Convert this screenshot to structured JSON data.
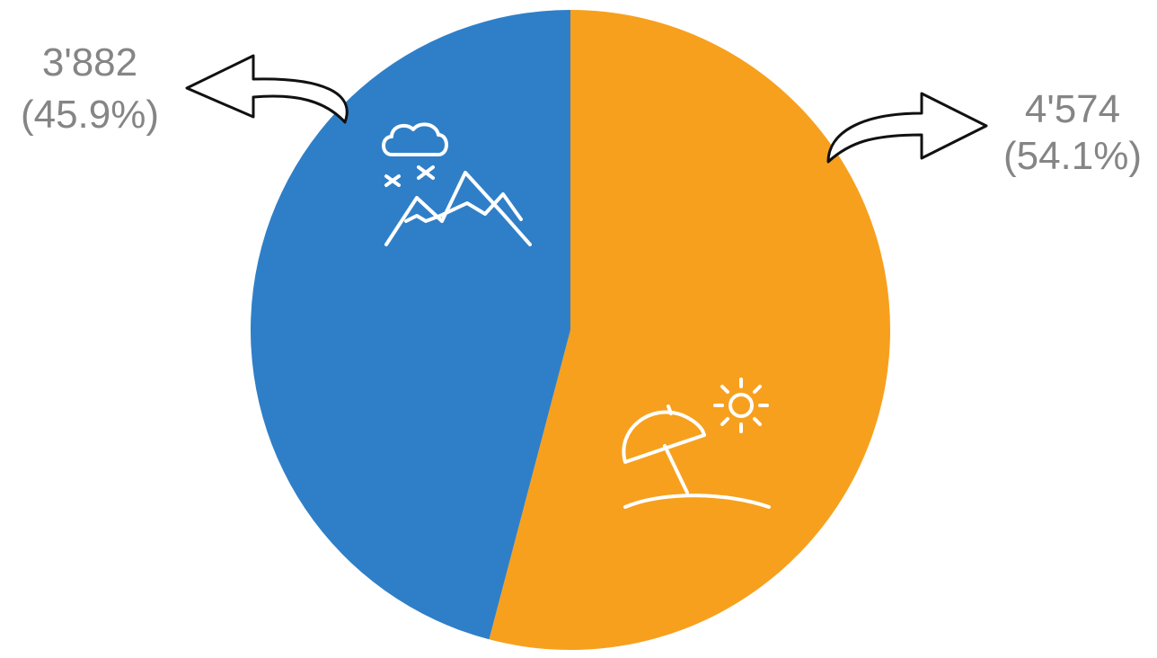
{
  "chart_data": {
    "type": "pie",
    "slices": [
      {
        "value": 4574,
        "value_label": "4'574",
        "percent_label": "(54.1%)",
        "color": "#F7A01E",
        "icon": "beach-umbrella-sun-icon"
      },
      {
        "value": 3882,
        "value_label": "3'882",
        "percent_label": "(45.9%)",
        "color": "#2F7FC8",
        "icon": "mountain-snow-cloud-icon"
      }
    ],
    "start_angle": "12 o'clock",
    "direction": "clockwise"
  }
}
